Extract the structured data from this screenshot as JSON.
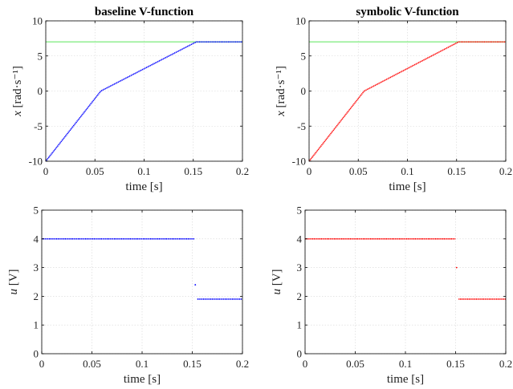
{
  "chart_data": [
    {
      "type": "line",
      "title": "baseline V-function",
      "xlabel": "time [s]",
      "ylabel_var": "x",
      "ylabel_unit": "[rad·s⁻¹]",
      "xlim": [
        0,
        0.2
      ],
      "ylim": [
        -10,
        10
      ],
      "xticks": [
        "0",
        "0.05",
        "0.1",
        "0.15",
        "0.2"
      ],
      "yticks": [
        "-10",
        "-5",
        "0",
        "5",
        "10"
      ],
      "grid": true,
      "series": [
        {
          "color": "#90ee90",
          "style": "line",
          "x": [
            0,
            0.2
          ],
          "y": [
            7,
            7
          ]
        },
        {
          "color": "#0000ff",
          "style": "dotted",
          "x": [
            0,
            0.056,
            0.153,
            0.2
          ],
          "y": [
            -10,
            0,
            7,
            7
          ]
        }
      ]
    },
    {
      "type": "line",
      "title": "symbolic V-function",
      "xlabel": "time [s]",
      "ylabel_var": "x",
      "ylabel_unit": "[rad·s⁻¹]",
      "xlim": [
        0,
        0.2
      ],
      "ylim": [
        -10,
        10
      ],
      "xticks": [
        "0",
        "0.05",
        "0.1",
        "0.15",
        "0.2"
      ],
      "yticks": [
        "-10",
        "-5",
        "0",
        "5",
        "10"
      ],
      "grid": true,
      "series": [
        {
          "color": "#90ee90",
          "style": "line",
          "x": [
            0,
            0.2
          ],
          "y": [
            7,
            7
          ]
        },
        {
          "color": "#ff0000",
          "style": "dotted",
          "x": [
            0,
            0.056,
            0.152,
            0.2
          ],
          "y": [
            -10,
            0,
            7,
            7
          ]
        }
      ]
    },
    {
      "type": "scatter",
      "title": "",
      "xlabel": "time [s]",
      "ylabel_var": "u",
      "ylabel_unit": "[V]",
      "xlim": [
        0,
        0.2
      ],
      "ylim": [
        0,
        5
      ],
      "xticks": [
        "0",
        "0.05",
        "0.1",
        "0.15",
        "0.2"
      ],
      "yticks": [
        "0",
        "1",
        "2",
        "3",
        "4",
        "5"
      ],
      "grid": true,
      "series": [
        {
          "color": "#0000ff",
          "style": "dotted",
          "x": [
            0,
            0.152
          ],
          "y": [
            4,
            4
          ]
        },
        {
          "color": "#0000ff",
          "style": "point",
          "x": [
            0.153
          ],
          "y": [
            2.4
          ]
        },
        {
          "color": "#0000ff",
          "style": "dotted",
          "x": [
            0.155,
            0.2
          ],
          "y": [
            1.9,
            1.9
          ]
        }
      ]
    },
    {
      "type": "scatter",
      "title": "",
      "xlabel": "time [s]",
      "ylabel_var": "u",
      "ylabel_unit": "[V]",
      "xlim": [
        0,
        0.2
      ],
      "ylim": [
        0,
        5
      ],
      "xticks": [
        "0",
        "0.05",
        "0.1",
        "0.15",
        "0.2"
      ],
      "yticks": [
        "0",
        "1",
        "2",
        "3",
        "4",
        "5"
      ],
      "grid": true,
      "series": [
        {
          "color": "#ff0000",
          "style": "dotted",
          "x": [
            0,
            0.15
          ],
          "y": [
            4,
            4
          ]
        },
        {
          "color": "#ff0000",
          "style": "point",
          "x": [
            0.151
          ],
          "y": [
            3.0
          ]
        },
        {
          "color": "#ff0000",
          "style": "dotted",
          "x": [
            0.153,
            0.2
          ],
          "y": [
            1.9,
            1.9
          ]
        }
      ]
    }
  ]
}
